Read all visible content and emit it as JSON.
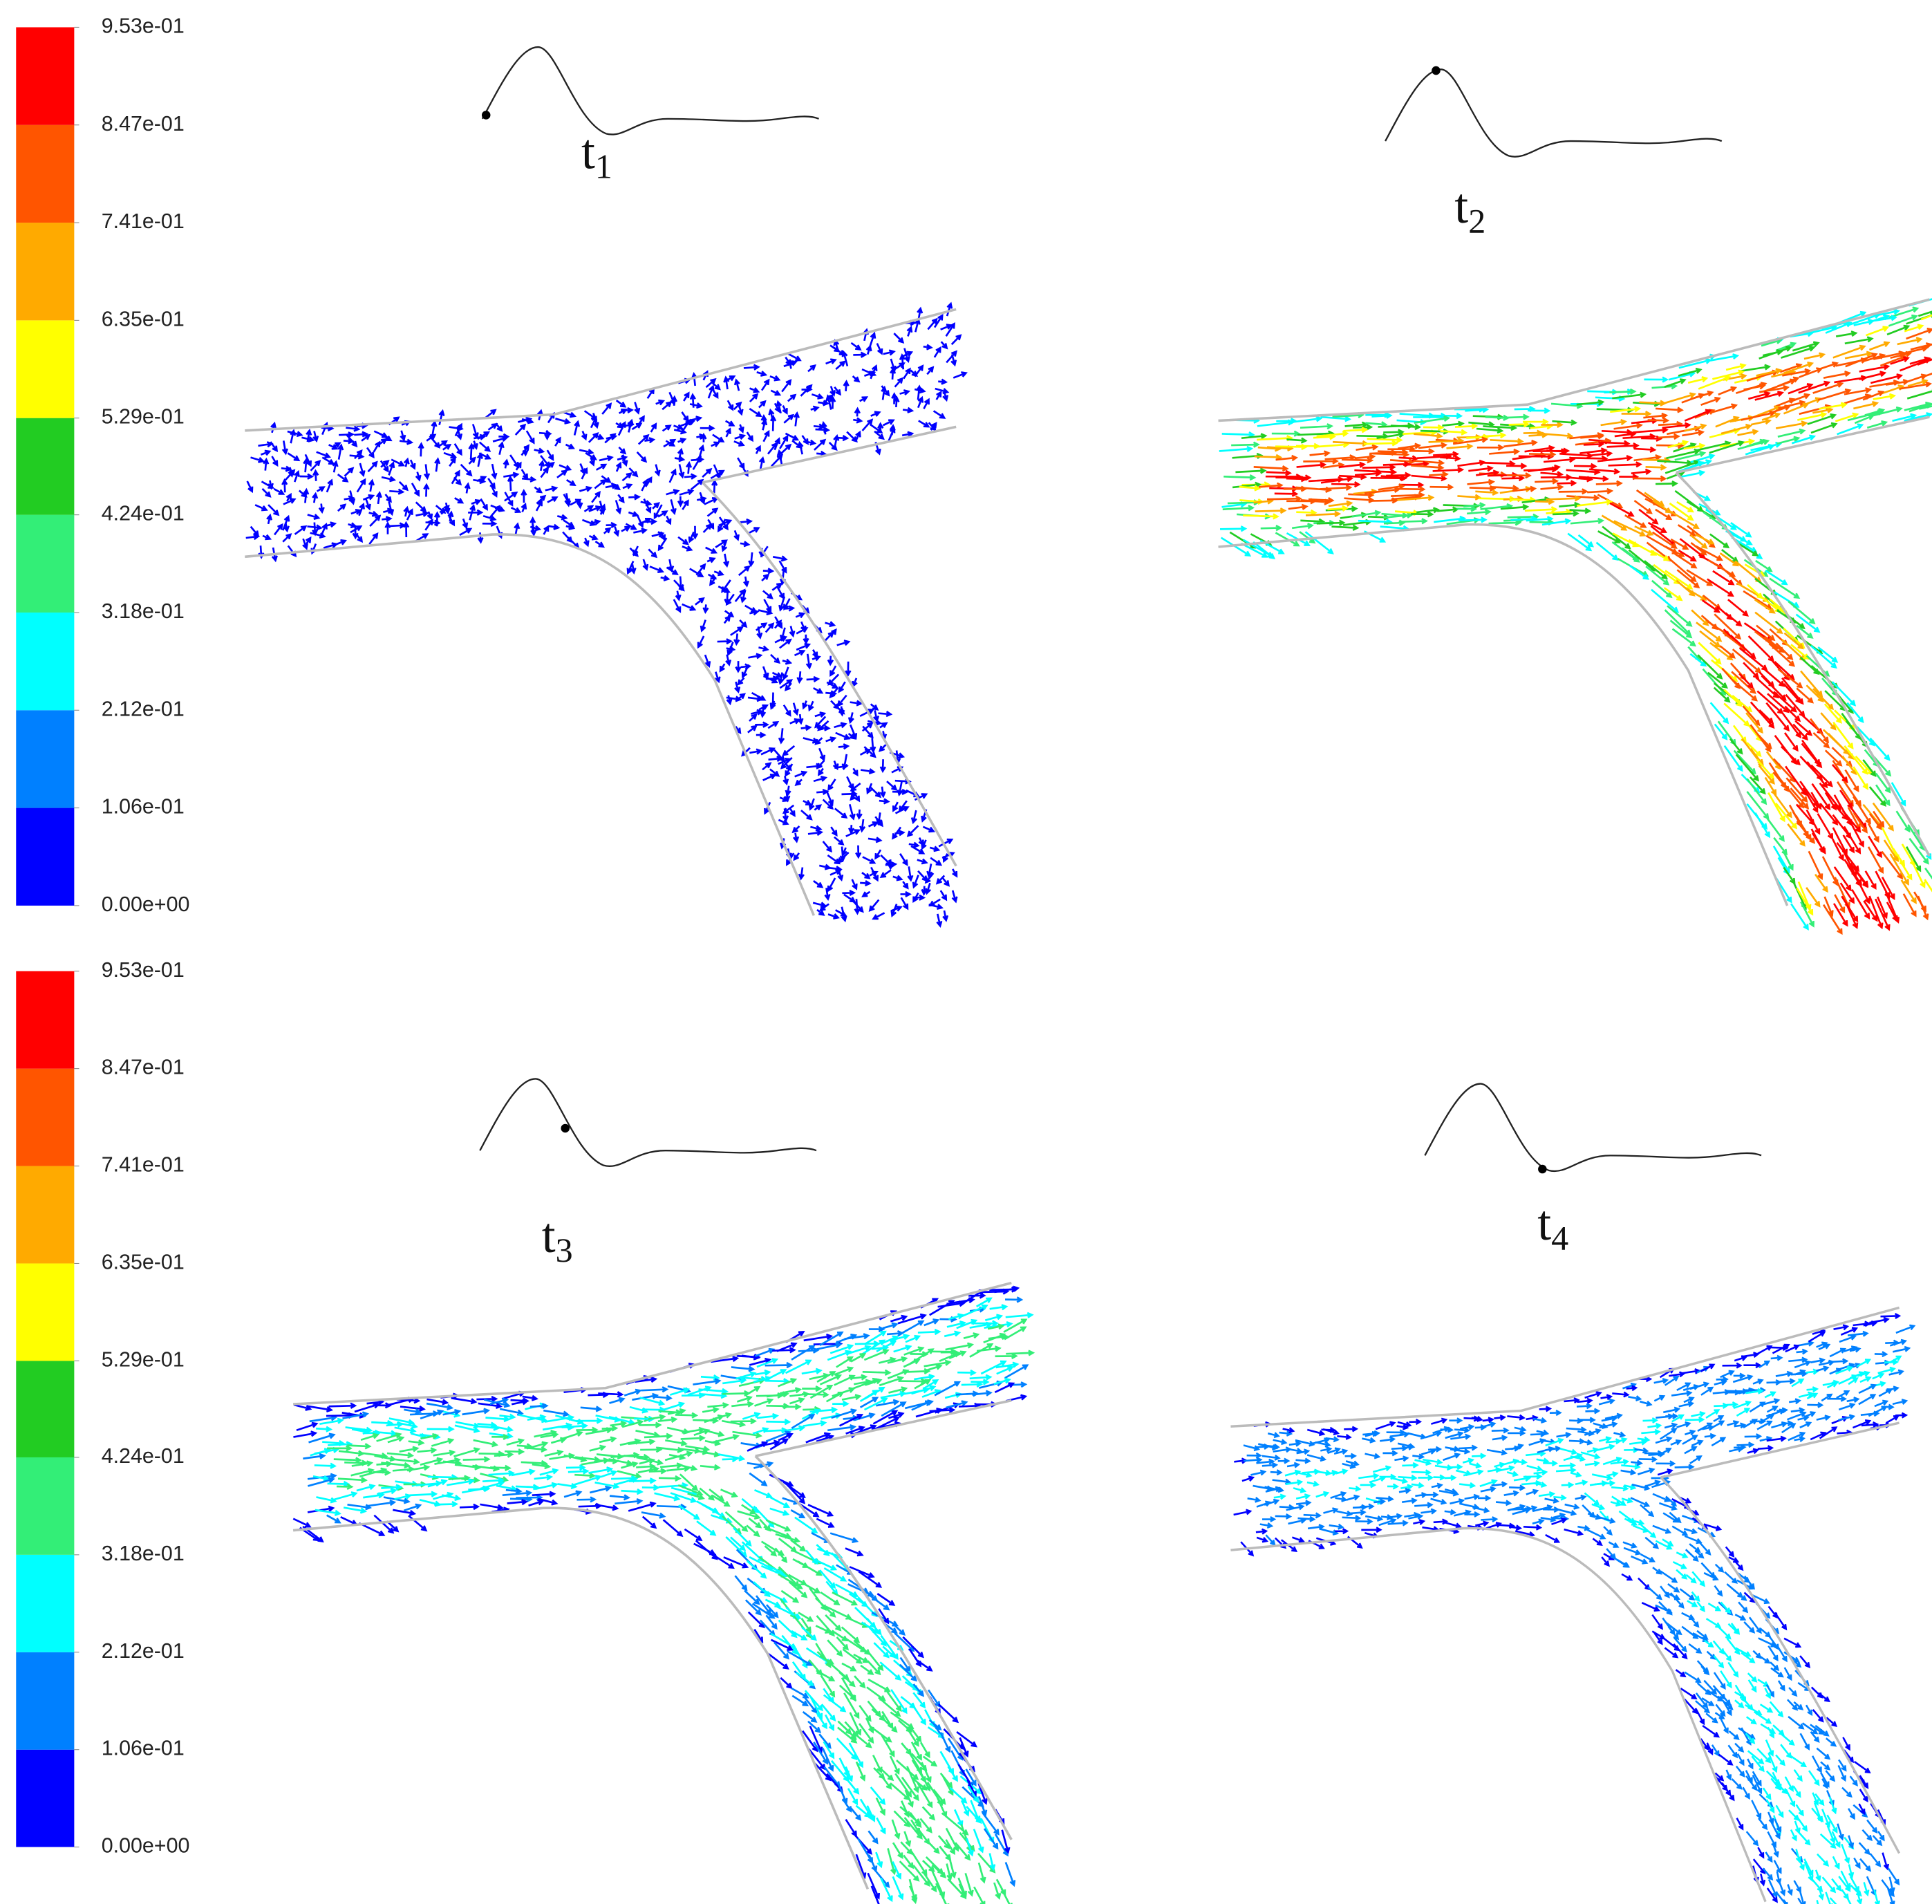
{
  "colorbars": [
    {
      "range": [
        0,
        0.953
      ],
      "colors": [
        "#0000ff",
        "#0080ff",
        "#00ffff",
        "#33ee77",
        "#22cc22",
        "#ffff00",
        "#ffaa00",
        "#ff5500",
        "#ff0000"
      ],
      "ticks": [
        {
          "value": 0,
          "label": "0.00e+00"
        },
        {
          "value": 0.106,
          "label": "1.06e-01"
        },
        {
          "value": 0.212,
          "label": "2.12e-01"
        },
        {
          "value": 0.318,
          "label": "3.18e-01"
        },
        {
          "value": 0.424,
          "label": "4.24e-01"
        },
        {
          "value": 0.529,
          "label": "5.29e-01"
        },
        {
          "value": 0.635,
          "label": "6.35e-01"
        },
        {
          "value": 0.741,
          "label": "7.41e-01"
        },
        {
          "value": 0.847,
          "label": "8.47e-01"
        },
        {
          "value": 0.953,
          "label": "9.53e-01"
        }
      ]
    },
    {
      "range": [
        0,
        0.953
      ],
      "colors": [
        "#0000ff",
        "#0080ff",
        "#00ffff",
        "#33ee77",
        "#22cc22",
        "#ffff00",
        "#ffaa00",
        "#ff5500",
        "#ff0000"
      ],
      "ticks": [
        {
          "value": 0,
          "label": "0.00e+00"
        },
        {
          "value": 0.106,
          "label": "1.06e-01"
        },
        {
          "value": 0.212,
          "label": "2.12e-01"
        },
        {
          "value": 0.318,
          "label": "3.18e-01"
        },
        {
          "value": 0.424,
          "label": "4.24e-01"
        },
        {
          "value": 0.529,
          "label": "5.29e-01"
        },
        {
          "value": 0.635,
          "label": "6.35e-01"
        },
        {
          "value": 0.741,
          "label": "7.41e-01"
        },
        {
          "value": 0.847,
          "label": "8.47e-01"
        },
        {
          "value": 0.953,
          "label": "9.53e-01"
        }
      ]
    }
  ],
  "panels": [
    {
      "label": {
        "text": "t",
        "subscript": "1"
      }
    },
    {
      "label": {
        "text": "t",
        "subscript": "2"
      }
    },
    {
      "label": {
        "text": "t",
        "subscript": "3"
      }
    },
    {
      "label": {
        "text": "t",
        "subscript": "4"
      }
    }
  ]
}
